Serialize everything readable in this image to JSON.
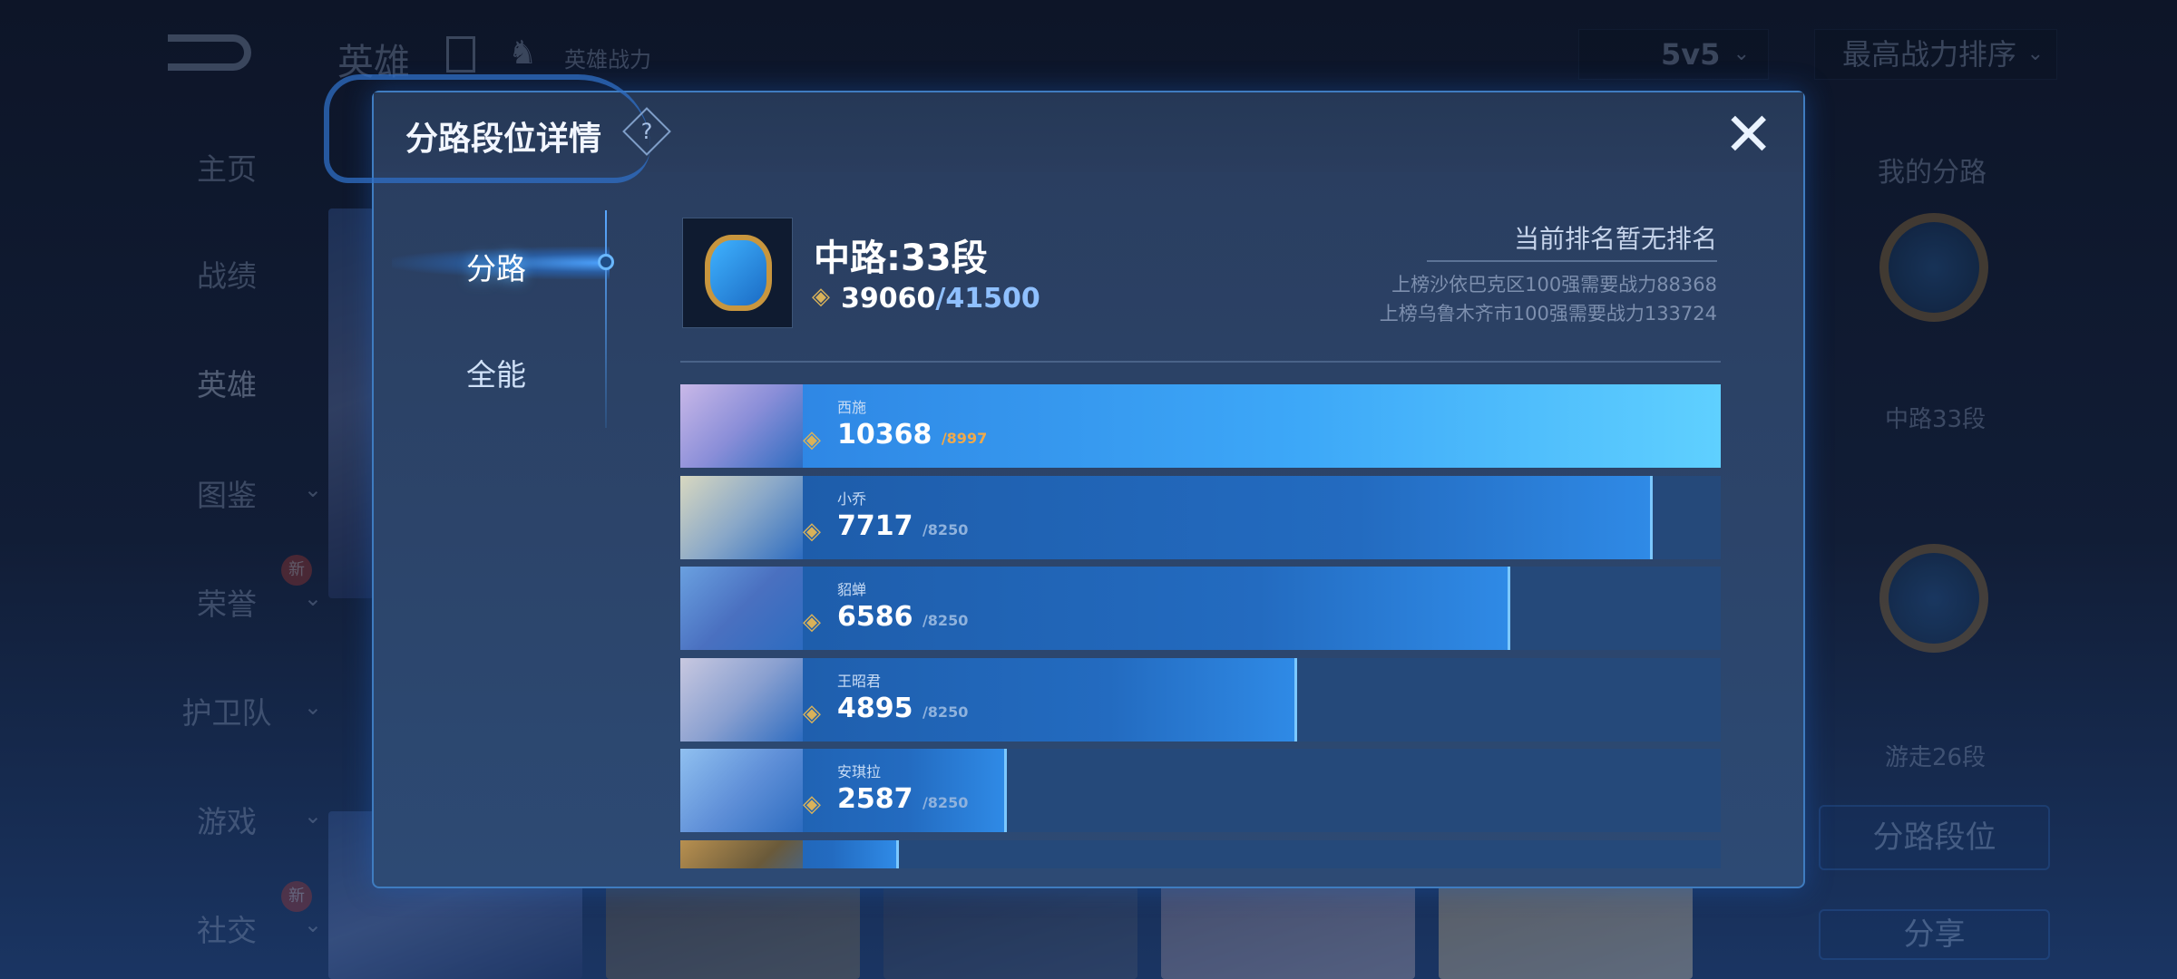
{
  "topbar": {
    "title": "英雄",
    "subtitle": "英雄战力",
    "mode_select": "5v5",
    "sort_select": "最高战力排序"
  },
  "sidebar": {
    "items": [
      {
        "label": "主页"
      },
      {
        "label": "战绩"
      },
      {
        "label": "英雄",
        "active": true
      },
      {
        "label": "图鉴",
        "expandable": true
      },
      {
        "label": "荣誉",
        "expandable": true,
        "badge": "新"
      },
      {
        "label": "护卫队",
        "expandable": true
      },
      {
        "label": "游戏",
        "expandable": true
      },
      {
        "label": "社交",
        "expandable": true,
        "badge": "新"
      }
    ]
  },
  "right_panel": {
    "title": "我的分路",
    "lanes": [
      {
        "label": "中路33段"
      },
      {
        "label": "游走26段"
      }
    ],
    "buttons": [
      "分路段位",
      "分享"
    ]
  },
  "modal": {
    "title": "分路段位详情",
    "help_icon": "question-icon",
    "close_icon": "close-icon",
    "tabs": [
      {
        "label": "分路",
        "active": true
      },
      {
        "label": "全能"
      }
    ],
    "lane": {
      "title": "中路:33段",
      "score": "39060",
      "target": "/41500"
    },
    "rank": {
      "status": "当前排名暂无排名",
      "req1": "上榜沙依巴克区100强需要战力88368",
      "req2": "上榜乌鲁木齐市100强需要战力133724"
    },
    "heroes": [
      {
        "name": "西施",
        "power": "10368",
        "max": "/8997",
        "progress": 100
      },
      {
        "name": "小乔",
        "power": "7717",
        "max": "/8250",
        "progress": 93.5
      },
      {
        "name": "貂蝉",
        "power": "6586",
        "max": "/8250",
        "progress": 79.8
      },
      {
        "name": "王昭君",
        "power": "4895",
        "max": "/8250",
        "progress": 59.3
      },
      {
        "name": "安琪拉",
        "power": "2587",
        "max": "/8250",
        "progress": 31.4
      },
      {
        "name": "",
        "power": "",
        "max": "",
        "progress": 21
      }
    ]
  },
  "colors": {
    "accent": "#3da8f8",
    "gold": "#d9b25a",
    "target_over": "#f0a94a"
  }
}
